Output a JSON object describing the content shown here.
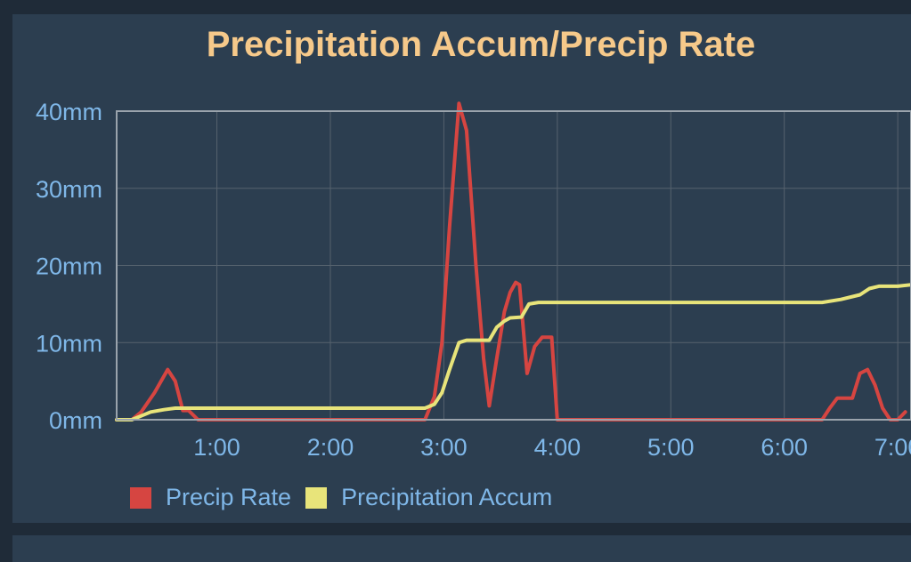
{
  "chart_data": {
    "type": "line",
    "title": "Precipitation Accum/Precip Rate",
    "y_unit": "mm",
    "ylim": [
      0,
      40
    ],
    "xlim": [
      "0:07",
      "7:07"
    ],
    "y_ticks": [
      "0mm",
      "10mm",
      "20mm",
      "30mm",
      "40mm"
    ],
    "x_ticks": [
      "1:00",
      "2:00",
      "3:00",
      "4:00",
      "5:00",
      "6:00",
      "7:00"
    ],
    "grid": true,
    "legend_position": "bottom-left",
    "series": [
      {
        "name": "Precip Rate",
        "color": "#d64541",
        "points": [
          [
            "0:07",
            0
          ],
          [
            "0:15",
            0
          ],
          [
            "0:20",
            1
          ],
          [
            "0:27",
            3.5
          ],
          [
            "0:34",
            6.5
          ],
          [
            "0:38",
            5
          ],
          [
            "0:42",
            1.2
          ],
          [
            "0:45",
            1.2
          ],
          [
            "0:50",
            0
          ],
          [
            "2:50",
            0
          ],
          [
            "2:55",
            3
          ],
          [
            "2:59",
            10
          ],
          [
            "3:03",
            25
          ],
          [
            "3:08",
            41
          ],
          [
            "3:12",
            37.5
          ],
          [
            "3:17",
            20
          ],
          [
            "3:21",
            8
          ],
          [
            "3:24",
            1.8
          ],
          [
            "3:28",
            8
          ],
          [
            "3:32",
            14
          ],
          [
            "3:35",
            16.5
          ],
          [
            "3:38",
            17.8
          ],
          [
            "3:40",
            17.5
          ],
          [
            "3:44",
            6
          ],
          [
            "3:48",
            9.5
          ],
          [
            "3:52",
            10.7
          ],
          [
            "3:57",
            10.7
          ],
          [
            "4:00",
            0
          ],
          [
            "6:20",
            0
          ],
          [
            "6:24",
            1.5
          ],
          [
            "6:28",
            2.8
          ],
          [
            "6:36",
            2.8
          ],
          [
            "6:40",
            6
          ],
          [
            "6:44",
            6.5
          ],
          [
            "6:48",
            4.5
          ],
          [
            "6:52",
            1.5
          ],
          [
            "6:56",
            0
          ],
          [
            "7:00",
            0
          ],
          [
            "7:04",
            1
          ]
        ]
      },
      {
        "name": "Precipitation Accum",
        "color": "#e8e47a",
        "points": [
          [
            "0:07",
            0
          ],
          [
            "0:15",
            0
          ],
          [
            "0:20",
            0.5
          ],
          [
            "0:25",
            1
          ],
          [
            "0:32",
            1.3
          ],
          [
            "0:38",
            1.5
          ],
          [
            "2:50",
            1.5
          ],
          [
            "2:55",
            2
          ],
          [
            "2:59",
            3.5
          ],
          [
            "3:03",
            6.5
          ],
          [
            "3:08",
            10
          ],
          [
            "3:12",
            10.3
          ],
          [
            "3:17",
            10.3
          ],
          [
            "3:24",
            10.3
          ],
          [
            "3:28",
            12
          ],
          [
            "3:32",
            12.8
          ],
          [
            "3:35",
            13.2
          ],
          [
            "3:41",
            13.3
          ],
          [
            "3:45",
            15
          ],
          [
            "3:50",
            15.2
          ],
          [
            "6:20",
            15.2
          ],
          [
            "6:30",
            15.6
          ],
          [
            "6:40",
            16.2
          ],
          [
            "6:45",
            17
          ],
          [
            "6:50",
            17.3
          ],
          [
            "7:00",
            17.3
          ],
          [
            "7:07",
            17.5
          ]
        ]
      }
    ]
  }
}
